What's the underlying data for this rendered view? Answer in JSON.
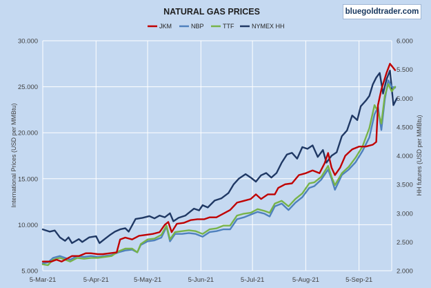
{
  "chart_data": {
    "type": "line",
    "title": "NATURAL GAS PRICES",
    "watermark": "bluegoldtrader.com",
    "ylabel_left": "International Prices (USD per MMBtu)",
    "ylabel_right": "HH futures (USD per MMBtu)",
    "ylim_left": [
      5,
      30
    ],
    "ylim_right": [
      2,
      6
    ],
    "yticks_left": [
      "5.000",
      "10.000",
      "15.000",
      "20.000",
      "25.000",
      "30.000"
    ],
    "yticks_right": [
      "2.000",
      "2.500",
      "3.000",
      "3.500",
      "4.000",
      "4.500",
      "5.000",
      "5.500",
      "6.000"
    ],
    "x_range": [
      "2021-03-05",
      "2021-09-24"
    ],
    "xticks": [
      "5-Mar-21",
      "5-Apr-21",
      "5-May-21",
      "5-Jun-21",
      "5-Jul-21",
      "5-Aug-21",
      "5-Sep-21"
    ],
    "xtick_dates": [
      "2021-03-05",
      "2021-04-05",
      "2021-05-05",
      "2021-06-05",
      "2021-07-05",
      "2021-08-05",
      "2021-09-05"
    ],
    "grid": true,
    "legend_position": "top",
    "series": [
      {
        "name": "JKM",
        "color": "#c00000",
        "axis": "left",
        "points": [
          [
            "2021-03-05",
            6.0
          ],
          [
            "2021-03-10",
            6.0
          ],
          [
            "2021-03-13",
            6.2
          ],
          [
            "2021-03-16",
            6.0
          ],
          [
            "2021-03-19",
            6.3
          ],
          [
            "2021-03-22",
            6.6
          ],
          [
            "2021-03-26",
            6.6
          ],
          [
            "2021-03-30",
            6.9
          ],
          [
            "2021-04-02",
            6.9
          ],
          [
            "2021-04-06",
            6.8
          ],
          [
            "2021-04-09",
            6.8
          ],
          [
            "2021-04-13",
            6.9
          ],
          [
            "2021-04-17",
            7.0
          ],
          [
            "2021-04-19",
            8.4
          ],
          [
            "2021-04-22",
            8.6
          ],
          [
            "2021-04-26",
            8.4
          ],
          [
            "2021-04-30",
            8.8
          ],
          [
            "2021-05-04",
            8.9
          ],
          [
            "2021-05-08",
            9.0
          ],
          [
            "2021-05-12",
            9.2
          ],
          [
            "2021-05-15",
            10.0
          ],
          [
            "2021-05-17",
            10.3
          ],
          [
            "2021-05-19",
            9.2
          ],
          [
            "2021-05-22",
            10.1
          ],
          [
            "2021-05-26",
            10.2
          ],
          [
            "2021-05-30",
            10.5
          ],
          [
            "2021-06-03",
            10.6
          ],
          [
            "2021-06-07",
            10.6
          ],
          [
            "2021-06-10",
            10.8
          ],
          [
            "2021-06-14",
            10.8
          ],
          [
            "2021-06-18",
            11.2
          ],
          [
            "2021-06-22",
            11.6
          ],
          [
            "2021-06-26",
            12.4
          ],
          [
            "2021-06-30",
            12.6
          ],
          [
            "2021-07-04",
            12.8
          ],
          [
            "2021-07-07",
            13.3
          ],
          [
            "2021-07-10",
            12.8
          ],
          [
            "2021-07-14",
            13.3
          ],
          [
            "2021-07-18",
            13.3
          ],
          [
            "2021-07-20",
            14.0
          ],
          [
            "2021-07-24",
            14.4
          ],
          [
            "2021-07-28",
            14.5
          ],
          [
            "2021-08-01",
            15.4
          ],
          [
            "2021-08-05",
            15.6
          ],
          [
            "2021-08-09",
            15.9
          ],
          [
            "2021-08-13",
            15.6
          ],
          [
            "2021-08-16",
            16.7
          ],
          [
            "2021-08-18",
            17.8
          ],
          [
            "2021-08-20",
            16.2
          ],
          [
            "2021-08-22",
            15.4
          ],
          [
            "2021-08-25",
            16.2
          ],
          [
            "2021-08-28",
            17.5
          ],
          [
            "2021-09-01",
            18.2
          ],
          [
            "2021-09-05",
            18.5
          ],
          [
            "2021-09-09",
            18.5
          ],
          [
            "2021-09-13",
            18.7
          ],
          [
            "2021-09-15",
            19.0
          ],
          [
            "2021-09-16",
            23.0
          ],
          [
            "2021-09-18",
            24.7
          ],
          [
            "2021-09-21",
            26.5
          ],
          [
            "2021-09-23",
            27.5
          ],
          [
            "2021-09-26",
            26.8
          ]
        ]
      },
      {
        "name": "NBP",
        "color": "#4f81bd",
        "axis": "left",
        "points": [
          [
            "2021-03-05",
            5.8
          ],
          [
            "2021-03-08",
            5.9
          ],
          [
            "2021-03-11",
            6.4
          ],
          [
            "2021-03-15",
            6.6
          ],
          [
            "2021-03-18",
            6.4
          ],
          [
            "2021-03-21",
            6.2
          ],
          [
            "2021-03-25",
            6.6
          ],
          [
            "2021-03-29",
            6.5
          ],
          [
            "2021-04-02",
            6.6
          ],
          [
            "2021-04-06",
            6.5
          ],
          [
            "2021-04-10",
            6.6
          ],
          [
            "2021-04-14",
            6.7
          ],
          [
            "2021-04-18",
            7.0
          ],
          [
            "2021-04-22",
            7.2
          ],
          [
            "2021-04-26",
            7.3
          ],
          [
            "2021-04-29",
            7.0
          ],
          [
            "2021-05-01",
            7.8
          ],
          [
            "2021-05-05",
            8.2
          ],
          [
            "2021-05-09",
            8.3
          ],
          [
            "2021-05-13",
            8.6
          ],
          [
            "2021-05-16",
            9.8
          ],
          [
            "2021-05-18",
            8.2
          ],
          [
            "2021-05-21",
            9.0
          ],
          [
            "2021-05-25",
            9.0
          ],
          [
            "2021-05-29",
            9.1
          ],
          [
            "2021-06-02",
            9.0
          ],
          [
            "2021-06-06",
            8.7
          ],
          [
            "2021-06-10",
            9.2
          ],
          [
            "2021-06-14",
            9.3
          ],
          [
            "2021-06-18",
            9.5
          ],
          [
            "2021-06-22",
            9.5
          ],
          [
            "2021-06-26",
            10.6
          ],
          [
            "2021-06-30",
            10.8
          ],
          [
            "2021-07-04",
            11.1
          ],
          [
            "2021-07-08",
            11.4
          ],
          [
            "2021-07-12",
            11.2
          ],
          [
            "2021-07-15",
            10.9
          ],
          [
            "2021-07-18",
            12.0
          ],
          [
            "2021-07-22",
            12.3
          ],
          [
            "2021-07-26",
            11.6
          ],
          [
            "2021-07-30",
            12.4
          ],
          [
            "2021-08-03",
            13.0
          ],
          [
            "2021-08-07",
            14.0
          ],
          [
            "2021-08-10",
            14.2
          ],
          [
            "2021-08-14",
            14.9
          ],
          [
            "2021-08-18",
            16.0
          ],
          [
            "2021-08-20",
            15.0
          ],
          [
            "2021-08-22",
            13.8
          ],
          [
            "2021-08-26",
            15.4
          ],
          [
            "2021-08-30",
            16.0
          ],
          [
            "2021-09-03",
            16.8
          ],
          [
            "2021-09-07",
            18.0
          ],
          [
            "2021-09-11",
            19.5
          ],
          [
            "2021-09-14",
            22.0
          ],
          [
            "2021-09-16",
            22.8
          ],
          [
            "2021-09-18",
            20.3
          ],
          [
            "2021-09-20",
            23.6
          ],
          [
            "2021-09-22",
            25.7
          ],
          [
            "2021-09-24",
            25.0
          ],
          [
            "2021-09-26",
            24.9
          ]
        ]
      },
      {
        "name": "TTF",
        "color": "#77b349",
        "axis": "left",
        "points": [
          [
            "2021-03-05",
            5.7
          ],
          [
            "2021-03-08",
            5.6
          ],
          [
            "2021-03-11",
            6.2
          ],
          [
            "2021-03-15",
            6.4
          ],
          [
            "2021-03-18",
            6.2
          ],
          [
            "2021-03-21",
            6.0
          ],
          [
            "2021-03-25",
            6.4
          ],
          [
            "2021-03-29",
            6.3
          ],
          [
            "2021-04-02",
            6.4
          ],
          [
            "2021-04-06",
            6.4
          ],
          [
            "2021-04-10",
            6.5
          ],
          [
            "2021-04-14",
            6.6
          ],
          [
            "2021-04-18",
            7.1
          ],
          [
            "2021-04-22",
            7.4
          ],
          [
            "2021-04-26",
            7.4
          ],
          [
            "2021-04-29",
            7.0
          ],
          [
            "2021-05-01",
            7.9
          ],
          [
            "2021-05-05",
            8.4
          ],
          [
            "2021-05-09",
            8.5
          ],
          [
            "2021-05-13",
            8.9
          ],
          [
            "2021-05-16",
            9.9
          ],
          [
            "2021-05-18",
            8.4
          ],
          [
            "2021-05-21",
            9.2
          ],
          [
            "2021-05-25",
            9.3
          ],
          [
            "2021-05-29",
            9.4
          ],
          [
            "2021-06-02",
            9.3
          ],
          [
            "2021-06-06",
            9.0
          ],
          [
            "2021-06-10",
            9.5
          ],
          [
            "2021-06-14",
            9.6
          ],
          [
            "2021-06-18",
            9.9
          ],
          [
            "2021-06-22",
            9.9
          ],
          [
            "2021-06-26",
            11.0
          ],
          [
            "2021-06-30",
            11.2
          ],
          [
            "2021-07-04",
            11.3
          ],
          [
            "2021-07-08",
            11.7
          ],
          [
            "2021-07-12",
            11.5
          ],
          [
            "2021-07-15",
            11.3
          ],
          [
            "2021-07-18",
            12.3
          ],
          [
            "2021-07-22",
            12.6
          ],
          [
            "2021-07-26",
            12.0
          ],
          [
            "2021-07-30",
            12.8
          ],
          [
            "2021-08-03",
            13.4
          ],
          [
            "2021-08-07",
            14.5
          ],
          [
            "2021-08-10",
            14.6
          ],
          [
            "2021-08-14",
            15.2
          ],
          [
            "2021-08-18",
            16.4
          ],
          [
            "2021-08-20",
            15.2
          ],
          [
            "2021-08-22",
            14.3
          ],
          [
            "2021-08-26",
            15.6
          ],
          [
            "2021-08-30",
            16.3
          ],
          [
            "2021-09-03",
            17.3
          ],
          [
            "2021-09-07",
            18.5
          ],
          [
            "2021-09-11",
            20.5
          ],
          [
            "2021-09-14",
            23.0
          ],
          [
            "2021-09-16",
            22.3
          ],
          [
            "2021-09-18",
            21.0
          ],
          [
            "2021-09-20",
            24.0
          ],
          [
            "2021-09-22",
            25.3
          ],
          [
            "2021-09-24",
            24.5
          ],
          [
            "2021-09-26",
            25.0
          ]
        ]
      },
      {
        "name": "NYMEX HH",
        "color": "#1f3864",
        "axis": "right",
        "points": [
          [
            "2021-03-05",
            2.72
          ],
          [
            "2021-03-09",
            2.68
          ],
          [
            "2021-03-12",
            2.7
          ],
          [
            "2021-03-15",
            2.58
          ],
          [
            "2021-03-18",
            2.52
          ],
          [
            "2021-03-20",
            2.58
          ],
          [
            "2021-03-22",
            2.48
          ],
          [
            "2021-03-26",
            2.55
          ],
          [
            "2021-03-28",
            2.5
          ],
          [
            "2021-04-01",
            2.58
          ],
          [
            "2021-04-05",
            2.6
          ],
          [
            "2021-04-07",
            2.48
          ],
          [
            "2021-04-10",
            2.55
          ],
          [
            "2021-04-13",
            2.62
          ],
          [
            "2021-04-16",
            2.68
          ],
          [
            "2021-04-19",
            2.72
          ],
          [
            "2021-04-22",
            2.74
          ],
          [
            "2021-04-24",
            2.68
          ],
          [
            "2021-04-28",
            2.9
          ],
          [
            "2021-05-02",
            2.92
          ],
          [
            "2021-05-06",
            2.95
          ],
          [
            "2021-05-09",
            2.91
          ],
          [
            "2021-05-12",
            2.96
          ],
          [
            "2021-05-15",
            2.93
          ],
          [
            "2021-05-18",
            3.0
          ],
          [
            "2021-05-20",
            2.86
          ],
          [
            "2021-05-23",
            2.92
          ],
          [
            "2021-05-27",
            2.96
          ],
          [
            "2021-06-01",
            3.08
          ],
          [
            "2021-06-04",
            3.05
          ],
          [
            "2021-06-06",
            3.14
          ],
          [
            "2021-06-09",
            3.1
          ],
          [
            "2021-06-13",
            3.22
          ],
          [
            "2021-06-17",
            3.26
          ],
          [
            "2021-06-21",
            3.35
          ],
          [
            "2021-06-24",
            3.5
          ],
          [
            "2021-06-27",
            3.6
          ],
          [
            "2021-07-01",
            3.68
          ],
          [
            "2021-07-04",
            3.62
          ],
          [
            "2021-07-07",
            3.55
          ],
          [
            "2021-07-10",
            3.66
          ],
          [
            "2021-07-13",
            3.7
          ],
          [
            "2021-07-16",
            3.62
          ],
          [
            "2021-07-19",
            3.7
          ],
          [
            "2021-07-22",
            3.88
          ],
          [
            "2021-07-25",
            4.02
          ],
          [
            "2021-07-28",
            4.05
          ],
          [
            "2021-07-31",
            3.95
          ],
          [
            "2021-08-03",
            4.15
          ],
          [
            "2021-08-06",
            4.12
          ],
          [
            "2021-08-09",
            4.18
          ],
          [
            "2021-08-12",
            3.98
          ],
          [
            "2021-08-15",
            4.1
          ],
          [
            "2021-08-17",
            3.88
          ],
          [
            "2021-08-20",
            4.0
          ],
          [
            "2021-08-23",
            4.06
          ],
          [
            "2021-08-26",
            4.34
          ],
          [
            "2021-08-29",
            4.44
          ],
          [
            "2021-09-01",
            4.7
          ],
          [
            "2021-09-04",
            4.62
          ],
          [
            "2021-09-06",
            4.86
          ],
          [
            "2021-09-09",
            4.96
          ],
          [
            "2021-09-11",
            5.04
          ],
          [
            "2021-09-13",
            5.24
          ],
          [
            "2021-09-15",
            5.36
          ],
          [
            "2021-09-17",
            5.44
          ],
          [
            "2021-09-19",
            5.08
          ],
          [
            "2021-09-21",
            5.33
          ],
          [
            "2021-09-23",
            5.48
          ],
          [
            "2021-09-25",
            4.88
          ],
          [
            "2021-09-27",
            5.0
          ]
        ]
      }
    ]
  }
}
